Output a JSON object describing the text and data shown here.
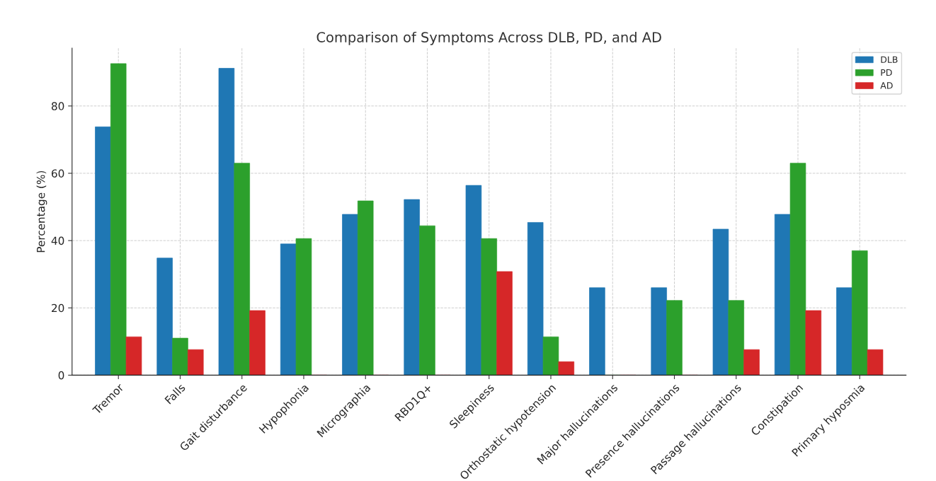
{
  "chart_data": {
    "type": "bar",
    "title": "Comparison of Symptoms Across DLB, PD, and AD",
    "ylabel": "Percentage (%)",
    "categories": [
      "Tremor",
      "Falls",
      "Gait disturbance",
      "Hypophonia",
      "Micrographia",
      "RBD1Q+",
      "Sleepiness",
      "Orthostatic hypotension",
      "Major hallucinations",
      "Presence hallucinations",
      "Passage hallucinations",
      "Constipation",
      "Primary hyposmia"
    ],
    "series": [
      {
        "name": "DLB",
        "color": "#1f77b4",
        "values": [
          73.8,
          34.8,
          91.2,
          39.0,
          47.8,
          52.2,
          56.4,
          45.4,
          26.0,
          26.0,
          43.4,
          47.8,
          26.0
        ]
      },
      {
        "name": "PD",
        "color": "#2ca02c",
        "values": [
          92.6,
          11.0,
          63.0,
          40.6,
          51.8,
          44.4,
          40.6,
          11.4,
          0,
          22.2,
          22.2,
          63.0,
          37.0
        ]
      },
      {
        "name": "AD",
        "color": "#d62728",
        "values": [
          11.4,
          7.6,
          19.2,
          0,
          0,
          0,
          30.8,
          4.0,
          0,
          0,
          7.6,
          19.2,
          7.6
        ]
      }
    ],
    "ylim": [
      0,
      97.2
    ],
    "yticks": [
      0,
      20,
      40,
      60,
      80
    ],
    "grid": true,
    "legend": "top right"
  }
}
